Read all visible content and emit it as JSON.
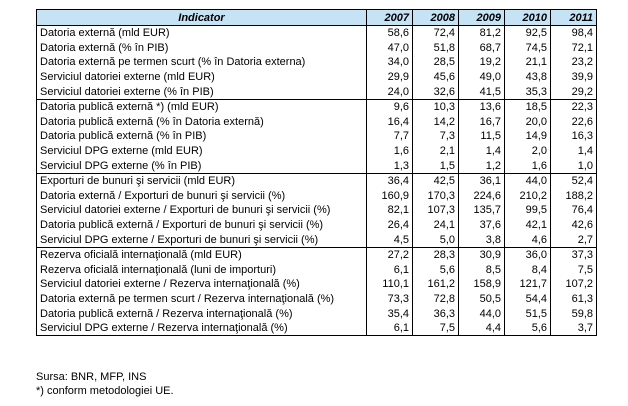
{
  "table": {
    "header": {
      "indicator": "Indicator",
      "years": [
        "2007",
        "2008",
        "2009",
        "2010",
        "2011"
      ]
    },
    "groups": [
      {
        "rows": [
          {
            "label": "Datoria externă (mld EUR)",
            "values": [
              "58,6",
              "72,4",
              "81,2",
              "92,5",
              "98,4"
            ]
          },
          {
            "label": "Datoria externă (% în PIB)",
            "values": [
              "47,0",
              "51,8",
              "68,7",
              "74,5",
              "72,1"
            ]
          },
          {
            "label": "Datoria externă pe termen scurt (% în Datoria externa)",
            "values": [
              "34,0",
              "28,5",
              "19,2",
              "21,1",
              "23,2"
            ]
          },
          {
            "label": "Serviciul datoriei externe (mld EUR)",
            "values": [
              "29,9",
              "45,6",
              "49,0",
              "43,8",
              "39,9"
            ]
          },
          {
            "label": "Serviciul datoriei externe (% în PIB)",
            "values": [
              "24,0",
              "32,6",
              "41,5",
              "35,3",
              "29,2"
            ]
          }
        ]
      },
      {
        "rows": [
          {
            "label": "Datoria publică externă *) (mld EUR)",
            "values": [
              "9,6",
              "10,3",
              "13,6",
              "18,5",
              "22,3"
            ]
          },
          {
            "label": "Datoria publică externă (% în Datoria externă)",
            "values": [
              "16,4",
              "14,2",
              "16,7",
              "20,0",
              "22,6"
            ]
          },
          {
            "label": "Datoria publică externă (% în PIB)",
            "values": [
              "7,7",
              "7,3",
              "11,5",
              "14,9",
              "16,3"
            ]
          },
          {
            "label": "Serviciul DPG externe (mld EUR)",
            "values": [
              "1,6",
              "2,1",
              "1,4",
              "2,0",
              "1,4"
            ]
          },
          {
            "label": "Serviciul DPG externe (% în PIB)",
            "values": [
              "1,3",
              "1,5",
              "1,2",
              "1,6",
              "1,0"
            ]
          }
        ]
      },
      {
        "rows": [
          {
            "label": "Exporturi de bunuri şi servicii (mld EUR)",
            "values": [
              "36,4",
              "42,5",
              "36,1",
              "44,0",
              "52,4"
            ]
          },
          {
            "label": "Datoria externă / Exporturi de bunuri şi servicii (%)",
            "values": [
              "160,9",
              "170,3",
              "224,6",
              "210,2",
              "188,2"
            ]
          },
          {
            "label": "Serviciul datoriei externe / Exporturi de bunuri şi servicii (%)",
            "values": [
              "82,1",
              "107,3",
              "135,7",
              "99,5",
              "76,4"
            ]
          },
          {
            "label": "Datoria publică externă / Exporturi de bunuri şi servicii (%)",
            "values": [
              "26,4",
              "24,1",
              "37,6",
              "42,1",
              "42,6"
            ]
          },
          {
            "label": "Serviciul DPG externe / Exporturi de bunuri şi servicii (%)",
            "values": [
              "4,5",
              "5,0",
              "3,8",
              "4,6",
              "2,7"
            ]
          }
        ]
      },
      {
        "rows": [
          {
            "label": "Rezerva oficială internaţională (mld EUR)",
            "values": [
              "27,2",
              "28,3",
              "30,9",
              "36,0",
              "37,3"
            ]
          },
          {
            "label": "Rezerva oficială internaţională (luni de importuri)",
            "values": [
              "6,1",
              "5,6",
              "8,5",
              "8,4",
              "7,5"
            ]
          },
          {
            "label": "Serviciul datoriei externe / Rezerva internaţională (%)",
            "values": [
              "110,1",
              "161,2",
              "158,9",
              "121,7",
              "107,2"
            ]
          },
          {
            "label": "Datoria externă pe termen scurt / Rezerva internaţională (%)",
            "values": [
              "73,3",
              "72,8",
              "50,5",
              "54,4",
              "61,3"
            ]
          },
          {
            "label": "Datoria publică externă / Rezerva internaţională (%)",
            "values": [
              "35,4",
              "36,3",
              "44,0",
              "51,5",
              "59,8"
            ]
          },
          {
            "label": "Serviciul DPG externe / Rezerva internaţională (%)",
            "values": [
              "6,1",
              "7,5",
              "4,4",
              "5,6",
              "3,7"
            ]
          }
        ]
      }
    ]
  },
  "notes": {
    "source": "Sursa: BNR, MFP, INS",
    "footnote": "*) conform metodologiei UE."
  }
}
